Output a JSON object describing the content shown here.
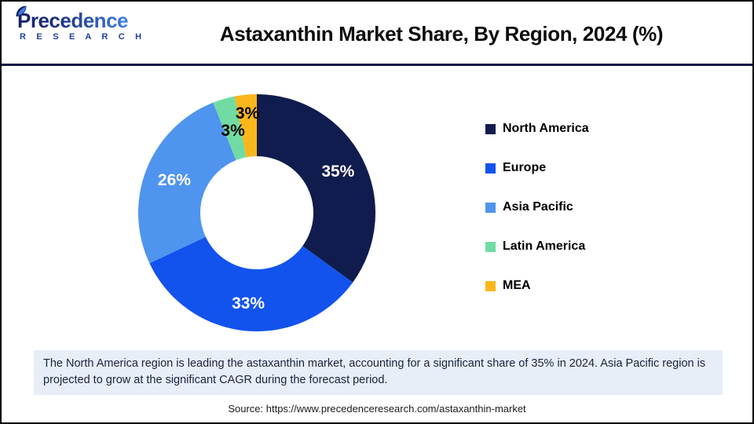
{
  "header": {
    "logo": {
      "name": "Precedence",
      "subname": "R E S E A R C H"
    },
    "title": "Astaxanthin Market Share, By Region, 2024 (%)"
  },
  "chart_data": {
    "type": "pie",
    "variant": "donut",
    "title": "Astaxanthin Market Share, By Region, 2024 (%)",
    "unit": "%",
    "segments": [
      {
        "name": "North America",
        "value": 35,
        "label": "35%",
        "color": "#101c4d",
        "label_color": "#ffffff",
        "label_r": 116
      },
      {
        "name": "Europe",
        "value": 33,
        "label": "33%",
        "color": "#1253ed",
        "label_color": "#ffffff",
        "label_r": 116
      },
      {
        "name": "Asia Pacific",
        "value": 26,
        "label": "26%",
        "color": "#4f94ee",
        "label_color": "#ffffff",
        "label_r": 113
      },
      {
        "name": "Latin America",
        "value": 3,
        "label": "3%",
        "color": "#70dca3",
        "label_color": "#000000",
        "label_r": 109
      },
      {
        "name": "MEA",
        "value": 3,
        "label": "3%",
        "color": "#fbb61c",
        "label_color": "#000000",
        "label_r": 127
      }
    ],
    "layout": {
      "start_angle_deg": 0,
      "direction": "clockwise",
      "inner_radius": 72,
      "outer_radius": 151,
      "legend_position": "right",
      "grid": false
    }
  },
  "note": {
    "text": "The North America region is leading the astaxanthin market, accounting for a significant share of 35% in 2024. Asia Pacific region is projected to grow at the significant CAGR during the forecast period."
  },
  "source": {
    "text": "Source: https://www.precedenceresearch.com/astaxanthin-market"
  }
}
